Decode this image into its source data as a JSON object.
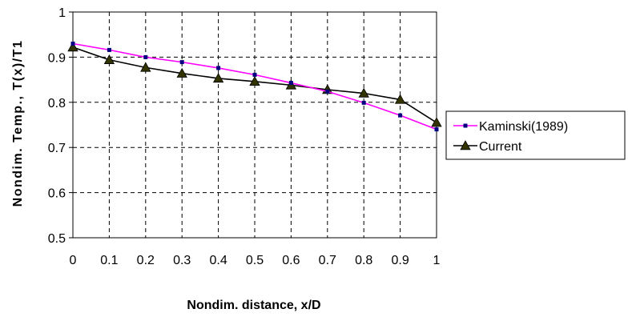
{
  "chart_data": {
    "type": "line",
    "xlabel": "Nondim. distance, x/D",
    "ylabel": "Nondim. Temp., T(x)/T1",
    "xlim": [
      0,
      1
    ],
    "ylim": [
      0.5,
      1
    ],
    "x_ticks": [
      "0",
      "0.1",
      "0.2",
      "0.3",
      "0.4",
      "0.5",
      "0.6",
      "0.7",
      "0.8",
      "0.9",
      "1"
    ],
    "y_ticks": [
      "0.5",
      "0.6",
      "0.7",
      "0.8",
      "0.9",
      "1"
    ],
    "grid": true,
    "legend_position": "right",
    "series": [
      {
        "name": "Kaminski(1989)",
        "color": "#ff00ff",
        "marker_color": "#000080",
        "marker": "square",
        "x": [
          0,
          0.1,
          0.2,
          0.3,
          0.4,
          0.5,
          0.6,
          0.7,
          0.8,
          0.9,
          1
        ],
        "y": [
          0.93,
          0.916,
          0.9,
          0.889,
          0.876,
          0.861,
          0.843,
          0.824,
          0.799,
          0.771,
          0.74
        ]
      },
      {
        "name": "Current",
        "color": "#000000",
        "marker_color": "#333300",
        "marker": "triangle",
        "x": [
          0,
          0.1,
          0.2,
          0.3,
          0.4,
          0.5,
          0.6,
          0.7,
          0.8,
          0.9,
          1
        ],
        "y": [
          0.922,
          0.894,
          0.877,
          0.864,
          0.853,
          0.846,
          0.838,
          0.828,
          0.82,
          0.806,
          0.755
        ]
      }
    ]
  }
}
